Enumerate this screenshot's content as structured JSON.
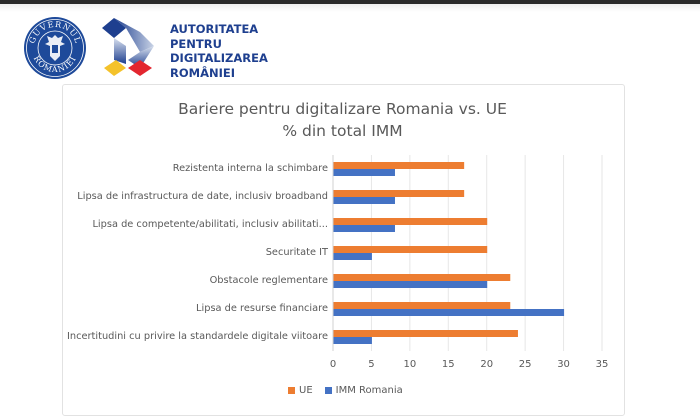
{
  "header": {
    "gov_logo_text": [
      "GUVERNUL",
      "ROMÂNIEI"
    ],
    "org_name_lines": [
      "AUTORITATEA",
      "PENTRU",
      "DIGITALIZAREA",
      "ROMÂNIEI"
    ]
  },
  "colors": {
    "ue": "#ed7d31",
    "imm": "#4472c4",
    "brand_blue": "#1e3f8f"
  },
  "chart_data": {
    "type": "bar",
    "orientation": "horizontal",
    "title": "Bariere pentru digitalizare Romania vs. UE",
    "subtitle": "% din total IMM",
    "categories": [
      "Rezistenta interna la schimbare",
      "Lipsa de infrastructura de date, inclusiv broadband",
      "Lipsa de competente/abilitati, inclusiv abilitati...",
      "Securitate IT",
      "Obstacole reglementare",
      "Lipsa de resurse financiare",
      "Incertitudini cu privire la standardele digitale viitoare"
    ],
    "series": [
      {
        "name": "UE",
        "values": [
          17,
          17,
          20,
          20,
          23,
          23,
          24
        ]
      },
      {
        "name": "IMM Romania",
        "values": [
          8,
          8,
          8,
          5,
          20,
          30,
          5
        ]
      }
    ],
    "xlim": [
      0,
      35
    ],
    "xticks": [
      "0",
      "5",
      "10",
      "15",
      "20",
      "25",
      "30",
      "35"
    ],
    "grid": true,
    "legend_position": "bottom"
  }
}
